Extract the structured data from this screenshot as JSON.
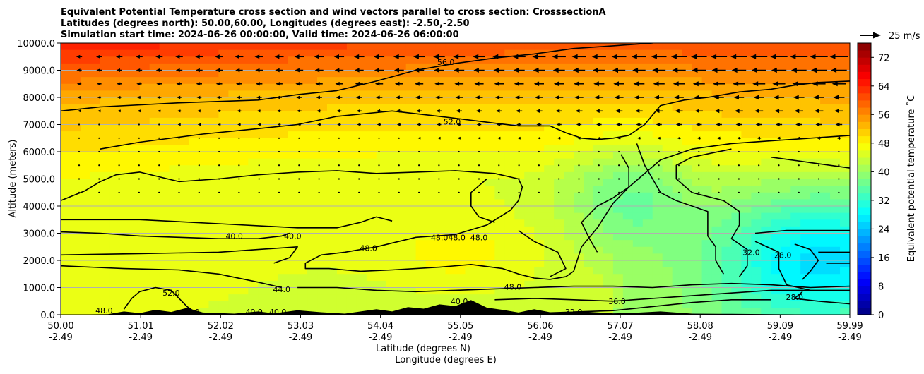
{
  "chart_data": {
    "type": "contourf-cross-section",
    "title_lines": [
      "Equivalent Potential Temperature cross section and wind vectors parallel to cross section: CrosssectionA",
      "Latitudes (degrees north): 50.00,60.00, Longitudes (degrees east): -2.50,-2.50",
      "Simulation start time: 2024-06-26 00:00:00, Valid time: 2024-06-26 06:00:00"
    ],
    "ylabel": "Altitude (meters)",
    "xlabel_lat": "Latitude (degrees N)",
    "xlabel_lon": "Longitude (degrees E)",
    "ylim": [
      0,
      10000
    ],
    "yticks": [
      0,
      1000,
      2000,
      3000,
      4000,
      5000,
      6000,
      7000,
      8000,
      9000,
      10000
    ],
    "ytick_labels": [
      "0.0",
      "1000.0",
      "2000.0",
      "3000.0",
      "4000.0",
      "5000.0",
      "6000.0",
      "7000.0",
      "8000.0",
      "9000.0",
      "10000.0"
    ],
    "xtick_lat": [
      "50.00",
      "51.01",
      "52.02",
      "53.03",
      "54.04",
      "55.05",
      "56.06",
      "57.07",
      "58.08",
      "59.09",
      "59.99"
    ],
    "xtick_lon": [
      "-2.49",
      "-2.49",
      "-2.49",
      "-2.49",
      "-2.49",
      "-2.49",
      "-2.49",
      "-2.49",
      "-2.49",
      "-2.49",
      "-2.49"
    ],
    "colorbar": {
      "label": "Equivalent potential temperature ˚C",
      "min": 0,
      "max": 76,
      "ticks": [
        0,
        8,
        16,
        24,
        32,
        40,
        48,
        56,
        64,
        72
      ],
      "tick_labels": [
        "0",
        "8",
        "16",
        "24",
        "32",
        "40",
        "48",
        "56",
        "64",
        "72"
      ],
      "colormap": "jet"
    },
    "quiver_key_label": "25 m/s",
    "contour_labels": [
      {
        "text": "56.0",
        "x": 0.488,
        "alt": 9300
      },
      {
        "text": "52.0",
        "x": 0.496,
        "alt": 7100
      },
      {
        "text": "40.0",
        "x": 0.22,
        "alt": 2900
      },
      {
        "text": "40.0",
        "x": 0.294,
        "alt": 2900
      },
      {
        "text": "48.0",
        "x": 0.39,
        "alt": 2450
      },
      {
        "text": "48.0",
        "x": 0.48,
        "alt": 2850
      },
      {
        "text": "48.0",
        "x": 0.502,
        "alt": 2850
      },
      {
        "text": "48.0",
        "x": 0.53,
        "alt": 2850
      },
      {
        "text": "48.0",
        "x": 0.573,
        "alt": 1020
      },
      {
        "text": "44.0",
        "x": 0.28,
        "alt": 940
      },
      {
        "text": "52.0",
        "x": 0.14,
        "alt": 800
      },
      {
        "text": "48.0",
        "x": 0.055,
        "alt": 150
      },
      {
        "text": "40.0",
        "x": 0.165,
        "alt": 100
      },
      {
        "text": "40.0",
        "x": 0.245,
        "alt": 100
      },
      {
        "text": "40.0",
        "x": 0.275,
        "alt": 100
      },
      {
        "text": "40.0",
        "x": 0.505,
        "alt": 500
      },
      {
        "text": "36.0",
        "x": 0.705,
        "alt": 500
      },
      {
        "text": "32.0",
        "x": 0.65,
        "alt": 100
      },
      {
        "text": "32.0",
        "x": 0.875,
        "alt": 2300
      },
      {
        "text": "28.0",
        "x": 0.915,
        "alt": 2200
      },
      {
        "text": "28.0",
        "x": 0.93,
        "alt": 650
      }
    ],
    "contours": [
      {
        "level": 56,
        "points": [
          [
            0,
            7500
          ],
          [
            0.05,
            7650
          ],
          [
            0.15,
            7800
          ],
          [
            0.25,
            7900
          ],
          [
            0.3,
            8100
          ],
          [
            0.35,
            8250
          ],
          [
            0.4,
            8600
          ],
          [
            0.45,
            9000
          ],
          [
            0.5,
            9250
          ],
          [
            0.55,
            9450
          ],
          [
            0.6,
            9600
          ],
          [
            0.65,
            9800
          ],
          [
            0.7,
            9900
          ],
          [
            0.75,
            10000
          ]
        ]
      },
      {
        "level": 52,
        "points": [
          [
            0.05,
            6100
          ],
          [
            0.1,
            6350
          ],
          [
            0.18,
            6650
          ],
          [
            0.25,
            6850
          ],
          [
            0.3,
            7000
          ],
          [
            0.35,
            7300
          ],
          [
            0.42,
            7500
          ],
          [
            0.48,
            7300
          ],
          [
            0.55,
            7050
          ],
          [
            0.58,
            6950
          ],
          [
            0.62,
            6950
          ],
          [
            0.64,
            6700
          ],
          [
            0.66,
            6500
          ],
          [
            0.68,
            6450
          ],
          [
            0.7,
            6500
          ],
          [
            0.72,
            6600
          ],
          [
            0.74,
            7000
          ],
          [
            0.76,
            7700
          ],
          [
            0.79,
            7900
          ],
          [
            0.82,
            8000
          ],
          [
            0.86,
            8200
          ],
          [
            0.9,
            8300
          ],
          [
            0.93,
            8450
          ],
          [
            0.96,
            8550
          ],
          [
            1.0,
            8600
          ]
        ]
      },
      {
        "level": 48,
        "points": [
          [
            0,
            4200
          ],
          [
            0.03,
            4550
          ],
          [
            0.05,
            4900
          ],
          [
            0.07,
            5150
          ],
          [
            0.1,
            5250
          ],
          [
            0.15,
            4900
          ],
          [
            0.2,
            5000
          ],
          [
            0.25,
            5150
          ],
          [
            0.3,
            5250
          ],
          [
            0.35,
            5300
          ],
          [
            0.4,
            5200
          ],
          [
            0.45,
            5250
          ],
          [
            0.5,
            5300
          ],
          [
            0.55,
            5200
          ],
          [
            0.58,
            5000
          ],
          [
            0.585,
            4700
          ],
          [
            0.58,
            4200
          ],
          [
            0.57,
            3850
          ],
          [
            0.54,
            3300
          ],
          [
            0.5,
            2950
          ],
          [
            0.45,
            2850
          ],
          [
            0.4,
            2500
          ],
          [
            0.36,
            2300
          ],
          [
            0.33,
            2200
          ],
          [
            0.31,
            1900
          ],
          [
            0.31,
            1700
          ],
          [
            0.34,
            1700
          ],
          [
            0.38,
            1600
          ],
          [
            0.42,
            1650
          ],
          [
            0.48,
            1750
          ],
          [
            0.52,
            1850
          ],
          [
            0.56,
            1700
          ],
          [
            0.58,
            1500
          ],
          [
            0.6,
            1350
          ],
          [
            0.62,
            1300
          ],
          [
            0.64,
            1400
          ],
          [
            0.65,
            1600
          ],
          [
            0.66,
            2500
          ],
          [
            0.68,
            3200
          ],
          [
            0.7,
            4100
          ],
          [
            0.72,
            4700
          ],
          [
            0.74,
            5200
          ],
          [
            0.76,
            5700
          ],
          [
            0.8,
            6100
          ],
          [
            0.85,
            6300
          ],
          [
            0.9,
            6400
          ],
          [
            0.95,
            6500
          ],
          [
            1.0,
            6600
          ]
        ]
      },
      {
        "level": 44,
        "points": [
          [
            0,
            3500
          ],
          [
            0.1,
            3500
          ],
          [
            0.2,
            3350
          ],
          [
            0.3,
            3200
          ],
          [
            0.35,
            3200
          ],
          [
            0.38,
            3400
          ],
          [
            0.4,
            3600
          ],
          [
            0.42,
            3450
          ]
        ]
      },
      {
        "level": 44,
        "points": [
          [
            0,
            1800
          ],
          [
            0.08,
            1700
          ],
          [
            0.15,
            1650
          ],
          [
            0.2,
            1500
          ],
          [
            0.25,
            1200
          ],
          [
            0.28,
            1000
          ]
        ]
      },
      {
        "level": 40,
        "points": [
          [
            0,
            3050
          ],
          [
            0.05,
            3000
          ],
          [
            0.1,
            2900
          ],
          [
            0.15,
            2850
          ],
          [
            0.2,
            2800
          ],
          [
            0.25,
            2800
          ],
          [
            0.28,
            2900
          ],
          [
            0.29,
            3000
          ]
        ]
      },
      {
        "level": 40,
        "points": [
          [
            0,
            2200
          ],
          [
            0.1,
            2250
          ],
          [
            0.2,
            2300
          ],
          [
            0.25,
            2400
          ],
          [
            0.3,
            2500
          ],
          [
            0.29,
            2100
          ],
          [
            0.27,
            1900
          ]
        ]
      },
      {
        "level": 48,
        "points": [
          [
            0.08,
            200
          ],
          [
            0.09,
            600
          ],
          [
            0.1,
            850
          ],
          [
            0.12,
            1000
          ],
          [
            0.14,
            900
          ],
          [
            0.15,
            600
          ],
          [
            0.16,
            300
          ],
          [
            0.17,
            100
          ]
        ]
      },
      {
        "level": 48,
        "points": [
          [
            0.3,
            1000
          ],
          [
            0.35,
            1000
          ],
          [
            0.4,
            900
          ],
          [
            0.45,
            850
          ],
          [
            0.5,
            900
          ],
          [
            0.55,
            950
          ],
          [
            0.6,
            1000
          ],
          [
            0.65,
            1050
          ],
          [
            0.7,
            1050
          ],
          [
            0.75,
            1000
          ],
          [
            0.8,
            1100
          ],
          [
            0.85,
            1150
          ],
          [
            0.9,
            1100
          ],
          [
            0.95,
            1000
          ],
          [
            1.0,
            1050
          ]
        ]
      },
      {
        "level": 44,
        "points": [
          [
            0.58,
            3100
          ],
          [
            0.6,
            2700
          ],
          [
            0.63,
            2300
          ],
          [
            0.64,
            1700
          ],
          [
            0.62,
            1400
          ]
        ]
      },
      {
        "level": 40,
        "points": [
          [
            0.55,
            550
          ],
          [
            0.6,
            600
          ],
          [
            0.65,
            550
          ],
          [
            0.7,
            500
          ],
          [
            0.75,
            600
          ],
          [
            0.8,
            700
          ],
          [
            0.85,
            800
          ],
          [
            0.9,
            900
          ],
          [
            0.95,
            900
          ],
          [
            1.0,
            900
          ]
        ]
      },
      {
        "level": 40,
        "points": [
          [
            0.73,
            6300
          ],
          [
            0.74,
            5500
          ],
          [
            0.75,
            5000
          ],
          [
            0.76,
            4500
          ],
          [
            0.78,
            4200
          ],
          [
            0.8,
            4000
          ],
          [
            0.82,
            3800
          ],
          [
            0.82,
            3300
          ],
          [
            0.82,
            2900
          ],
          [
            0.83,
            2500
          ],
          [
            0.83,
            2000
          ],
          [
            0.84,
            1500
          ]
        ]
      },
      {
        "level": 40,
        "points": [
          [
            0.85,
            6100
          ],
          [
            0.8,
            5800
          ],
          [
            0.78,
            5500
          ],
          [
            0.78,
            5000
          ],
          [
            0.8,
            4500
          ],
          [
            0.84,
            4200
          ],
          [
            0.86,
            3800
          ],
          [
            0.86,
            3300
          ],
          [
            0.85,
            2800
          ],
          [
            0.87,
            2400
          ],
          [
            0.87,
            1800
          ],
          [
            0.86,
            1400
          ]
        ]
      },
      {
        "level": 44,
        "points": [
          [
            0.71,
            5900
          ],
          [
            0.72,
            5400
          ],
          [
            0.72,
            4700
          ],
          [
            0.7,
            4300
          ],
          [
            0.68,
            4000
          ],
          [
            0.66,
            3400
          ],
          [
            0.67,
            2800
          ],
          [
            0.68,
            2300
          ]
        ]
      },
      {
        "level": 36,
        "points": [
          [
            0.9,
            5800
          ],
          [
            0.95,
            5600
          ],
          [
            1.0,
            5400
          ]
        ]
      },
      {
        "level": 36,
        "points": [
          [
            0.88,
            2700
          ],
          [
            0.91,
            2300
          ],
          [
            0.91,
            1700
          ],
          [
            0.92,
            1100
          ],
          [
            0.95,
            900
          ]
        ]
      },
      {
        "level": 32,
        "points": [
          [
            0.88,
            3000
          ],
          [
            0.92,
            3100
          ],
          [
            0.96,
            3100
          ],
          [
            1.0,
            3100
          ]
        ]
      },
      {
        "level": 32,
        "points": [
          [
            0.93,
            2600
          ],
          [
            0.95,
            2400
          ],
          [
            0.96,
            2000
          ],
          [
            0.95,
            1600
          ],
          [
            0.94,
            1300
          ]
        ]
      },
      {
        "level": 28,
        "points": [
          [
            0.96,
            2300
          ],
          [
            1.0,
            2300
          ]
        ]
      },
      {
        "level": 28,
        "points": [
          [
            0.97,
            1900
          ],
          [
            1.0,
            1900
          ]
        ]
      },
      {
        "level": 28,
        "points": [
          [
            0.94,
            850
          ],
          [
            0.93,
            600
          ],
          [
            0.96,
            500
          ],
          [
            1.0,
            400
          ]
        ]
      },
      {
        "level": 32,
        "points": [
          [
            0.65,
            100
          ],
          [
            0.7,
            150
          ],
          [
            0.75,
            300
          ],
          [
            0.8,
            450
          ],
          [
            0.85,
            550
          ],
          [
            0.9,
            550
          ]
        ]
      },
      {
        "level": 48,
        "points": [
          [
            0.55,
            3400
          ],
          [
            0.53,
            3600
          ],
          [
            0.52,
            4000
          ],
          [
            0.52,
            4500
          ],
          [
            0.54,
            5000
          ]
        ]
      }
    ],
    "terrain": [
      [
        0,
        0
      ],
      [
        0.06,
        20
      ],
      [
        0.08,
        120
      ],
      [
        0.1,
        60
      ],
      [
        0.12,
        180
      ],
      [
        0.14,
        100
      ],
      [
        0.16,
        250
      ],
      [
        0.18,
        80
      ],
      [
        0.22,
        40
      ],
      [
        0.25,
        120
      ],
      [
        0.27,
        50
      ],
      [
        0.3,
        160
      ],
      [
        0.33,
        90
      ],
      [
        0.36,
        40
      ],
      [
        0.4,
        200
      ],
      [
        0.42,
        120
      ],
      [
        0.44,
        280
      ],
      [
        0.46,
        220
      ],
      [
        0.48,
        380
      ],
      [
        0.5,
        320
      ],
      [
        0.52,
        540
      ],
      [
        0.54,
        260
      ],
      [
        0.56,
        180
      ],
      [
        0.58,
        80
      ],
      [
        0.6,
        200
      ],
      [
        0.62,
        90
      ],
      [
        0.64,
        110
      ],
      [
        0.66,
        120
      ],
      [
        0.7,
        50
      ],
      [
        0.72,
        60
      ],
      [
        0.76,
        120
      ],
      [
        0.8,
        40
      ],
      [
        0.85,
        30
      ],
      [
        0.9,
        20
      ],
      [
        1.0,
        0
      ]
    ]
  }
}
